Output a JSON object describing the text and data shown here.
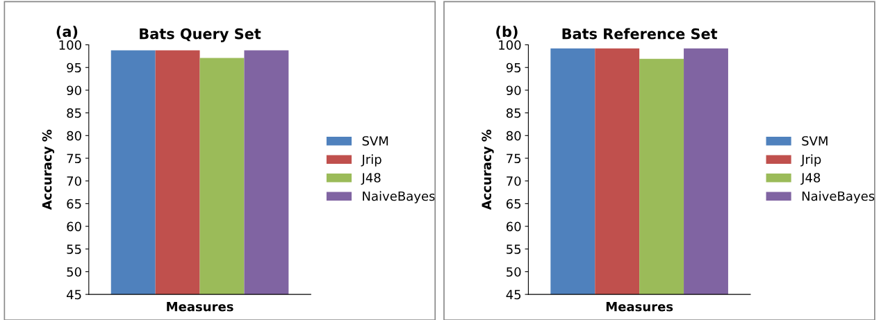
{
  "chart_data": [
    {
      "type": "bar",
      "title": "Bats Query Set",
      "annotations": [
        "(a)"
      ],
      "xlabel": "Measures",
      "ylabel": "Accuracy %",
      "categories": [
        null
      ],
      "ylim": [
        45,
        100
      ],
      "yticks": [
        45,
        50,
        55,
        60,
        65,
        70,
        75,
        80,
        85,
        90,
        95,
        100
      ],
      "grid": false,
      "legend": "right",
      "series": [
        {
          "name": "SVM",
          "color": "#4f81bd",
          "values": [
            98.8
          ]
        },
        {
          "name": "Jrip",
          "color": "#c0504d",
          "values": [
            98.8
          ]
        },
        {
          "name": "J48",
          "color": "#9bbb59",
          "values": [
            97.1
          ]
        },
        {
          "name": "NaiveBayes",
          "color": "#8064a2",
          "values": [
            98.8
          ]
        }
      ]
    },
    {
      "type": "bar",
      "title": "Bats Reference Set",
      "annotations": [
        "(b)"
      ],
      "xlabel": "Measures",
      "ylabel": "Accuracy %",
      "categories": [
        null
      ],
      "ylim": [
        45,
        100
      ],
      "yticks": [
        45,
        50,
        55,
        60,
        65,
        70,
        75,
        80,
        85,
        90,
        95,
        100
      ],
      "grid": false,
      "legend": "right",
      "series": [
        {
          "name": "SVM",
          "color": "#4f81bd",
          "values": [
            99.2
          ]
        },
        {
          "name": "Jrip",
          "color": "#c0504d",
          "values": [
            99.2
          ]
        },
        {
          "name": "J48",
          "color": "#9bbb59",
          "values": [
            96.9
          ]
        },
        {
          "name": "NaiveBayes",
          "color": "#8064a2",
          "values": [
            99.2
          ]
        }
      ]
    }
  ]
}
